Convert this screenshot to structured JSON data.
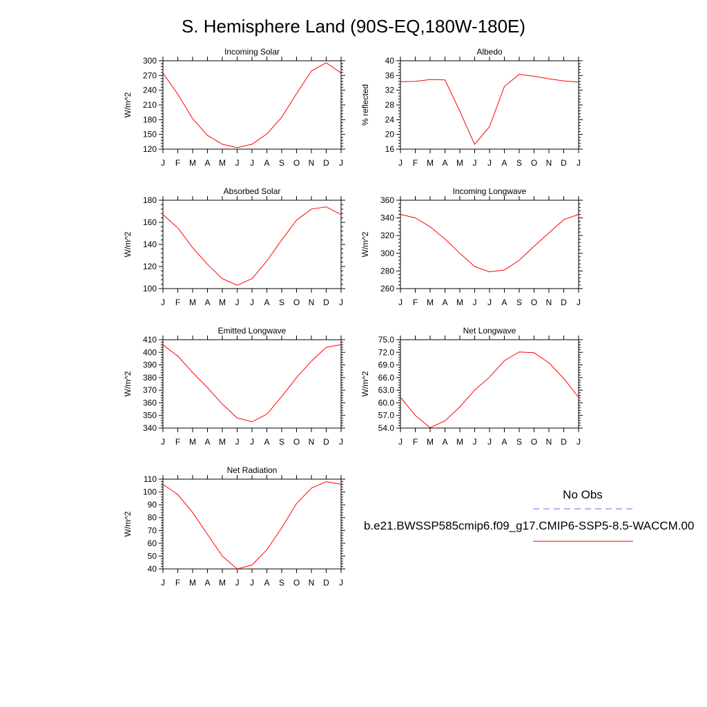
{
  "title": "S. Hemisphere Land (90S-EQ,180W-180E)",
  "legend": {
    "obs_label": "No Obs",
    "obs_color": "#6666ff",
    "model_label": "b.e21.BWSSP585cmip6.f09_g17.CMIP6-SSP5-8.5-WACCM.00",
    "model_color": "#ff0000"
  },
  "chart_data": [
    {
      "type": "line",
      "title": "Incoming Solar",
      "ylabel": "W/m^2",
      "x": [
        "J",
        "F",
        "M",
        "A",
        "M",
        "J",
        "J",
        "A",
        "S",
        "O",
        "N",
        "D",
        "J"
      ],
      "ylim": [
        120,
        300
      ],
      "yticks": [
        "120",
        "150",
        "180",
        "210",
        "240",
        "270",
        "300"
      ],
      "series": [
        {
          "values": [
            275,
            232,
            182,
            148,
            130,
            123,
            130,
            151,
            185,
            233,
            279,
            296,
            275
          ]
        }
      ]
    },
    {
      "type": "line",
      "title": "Albedo",
      "ylabel": "% reflected",
      "x": [
        "J",
        "F",
        "M",
        "A",
        "M",
        "J",
        "J",
        "A",
        "S",
        "O",
        "N",
        "D",
        "J"
      ],
      "ylim": [
        16,
        40
      ],
      "yticks": [
        "16",
        "20",
        "24",
        "28",
        "32",
        "36",
        "40"
      ],
      "series": [
        {
          "values": [
            34.3,
            34.4,
            34.9,
            34.8,
            26.3,
            17.3,
            22.1,
            33.0,
            36.3,
            35.8,
            35.1,
            34.5,
            34.2
          ]
        }
      ]
    },
    {
      "type": "line",
      "title": "Absorbed Solar",
      "ylabel": "W/m^2",
      "x": [
        "J",
        "F",
        "M",
        "A",
        "M",
        "J",
        "J",
        "A",
        "S",
        "O",
        "N",
        "D",
        "J"
      ],
      "ylim": [
        100,
        180
      ],
      "yticks": [
        "100",
        "120",
        "140",
        "160",
        "180"
      ],
      "series": [
        {
          "values": [
            167,
            155,
            137,
            122,
            109,
            103,
            109,
            125,
            144,
            162,
            172,
            174,
            167
          ]
        }
      ]
    },
    {
      "type": "line",
      "title": "Incoming Longwave",
      "ylabel": "W/m^2",
      "x": [
        "J",
        "F",
        "M",
        "A",
        "M",
        "J",
        "J",
        "A",
        "S",
        "O",
        "N",
        "D",
        "J"
      ],
      "ylim": [
        260,
        360
      ],
      "yticks": [
        "260",
        "280",
        "300",
        "320",
        "340",
        "360"
      ],
      "series": [
        {
          "values": [
            344,
            340,
            330,
            316,
            300,
            285,
            279,
            281,
            292,
            308,
            323,
            338,
            344
          ]
        }
      ]
    },
    {
      "type": "line",
      "title": "Emitted Longwave",
      "ylabel": "W/m^2",
      "x": [
        "J",
        "F",
        "M",
        "A",
        "M",
        "J",
        "J",
        "A",
        "S",
        "O",
        "N",
        "D",
        "J"
      ],
      "ylim": [
        340,
        410
      ],
      "yticks": [
        "340",
        "350",
        "360",
        "370",
        "380",
        "390",
        "400",
        "410"
      ],
      "series": [
        {
          "values": [
            406,
            397,
            384,
            372,
            359,
            348,
            345,
            351,
            365,
            380,
            393,
            404,
            406
          ]
        }
      ]
    },
    {
      "type": "line",
      "title": "Net Longwave",
      "ylabel": "W/m^2",
      "x": [
        "J",
        "F",
        "M",
        "A",
        "M",
        "J",
        "J",
        "A",
        "S",
        "O",
        "N",
        "D",
        "J"
      ],
      "ylim": [
        54,
        75
      ],
      "yticks": [
        "54.0",
        "57.0",
        "60.0",
        "63.0",
        "66.0",
        "69.0",
        "72.0",
        "75.0"
      ],
      "series": [
        {
          "values": [
            61.3,
            57.0,
            54.1,
            55.7,
            59.0,
            63.0,
            66.1,
            70.0,
            72.1,
            71.9,
            69.5,
            65.8,
            61.3
          ]
        }
      ]
    },
    {
      "type": "line",
      "title": "Net Radiation",
      "ylabel": "W/m^2",
      "x": [
        "J",
        "F",
        "M",
        "A",
        "M",
        "J",
        "J",
        "A",
        "S",
        "O",
        "N",
        "D",
        "J"
      ],
      "ylim": [
        40,
        110
      ],
      "yticks": [
        "40",
        "50",
        "60",
        "70",
        "80",
        "90",
        "100",
        "110"
      ],
      "series": [
        {
          "values": [
            106,
            98,
            84,
            67,
            50,
            40,
            43,
            55,
            72,
            91,
            103,
            108,
            106
          ]
        }
      ]
    }
  ]
}
